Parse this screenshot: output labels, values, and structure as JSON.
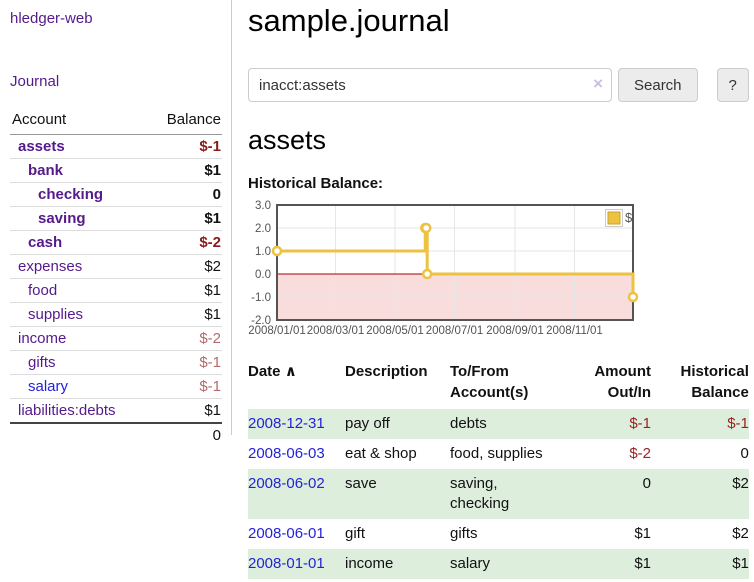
{
  "app": {
    "title": "hledger-web",
    "nav_journal": "Journal"
  },
  "sidebar": {
    "header": {
      "account": "Account",
      "balance": "Balance"
    },
    "accounts": [
      {
        "name": "assets",
        "balance": "$-1"
      },
      {
        "name": "bank",
        "balance": "$1"
      },
      {
        "name": "checking",
        "balance": "0"
      },
      {
        "name": "saving",
        "balance": "$1"
      },
      {
        "name": "cash",
        "balance": "$-2"
      },
      {
        "name": "expenses",
        "balance": "$2"
      },
      {
        "name": "food",
        "balance": "$1"
      },
      {
        "name": "supplies",
        "balance": "$1"
      },
      {
        "name": "income",
        "balance": "$-2"
      },
      {
        "name": "gifts",
        "balance": "$-1"
      },
      {
        "name": "salary",
        "balance": "$-1"
      },
      {
        "name": "liabilities:debts",
        "balance": "$1"
      }
    ],
    "total": "0"
  },
  "header": {
    "title": "sample.journal"
  },
  "search": {
    "query": "inacct:assets",
    "clear_icon": "×",
    "search_label": "Search",
    "help_label": "?"
  },
  "account_page": {
    "heading": "assets"
  },
  "chart_data": {
    "type": "line",
    "style": "step-after",
    "title": "Historical Balance:",
    "series": [
      {
        "name": "$",
        "color": "#edc240",
        "points": [
          [
            "2008-01-01",
            1
          ],
          [
            "2008-06-01",
            2
          ],
          [
            "2008-06-02",
            2
          ],
          [
            "2008-06-03",
            0
          ],
          [
            "2008-12-31",
            -1
          ]
        ]
      }
    ],
    "xlim": [
      "2008-01-01",
      "2008-12-31"
    ],
    "ylim": [
      -2,
      3
    ],
    "y_ticks": [
      3,
      2,
      1,
      0,
      -1,
      -2
    ],
    "x_ticks": [
      "2008/01/01",
      "2008/03/01",
      "2008/05/01",
      "2008/07/01",
      "2008/09/01",
      "2008/11/01"
    ],
    "grid": true,
    "legend_position": "top-right",
    "zero_line_color": "#a40000",
    "negative_region_fill": "#f9dcdc"
  },
  "register": {
    "sort_icon": "∧",
    "columns": [
      {
        "line1": "Date",
        "line2": ""
      },
      {
        "line1": "Description",
        "line2": ""
      },
      {
        "line1": "To/From",
        "line2": "Account(s)"
      },
      {
        "line1": "Amount",
        "line2": "Out/In"
      },
      {
        "line1": "Historical",
        "line2": "Balance"
      }
    ],
    "rows": [
      {
        "date": "2008-12-31",
        "description": "pay off",
        "tofrom": "debts",
        "amount": "$-1",
        "balance": "$-1"
      },
      {
        "date": "2008-06-03",
        "description": "eat & shop",
        "tofrom": "food, supplies",
        "amount": "$-2",
        "balance": "0"
      },
      {
        "date": "2008-06-02",
        "description": "save",
        "tofrom": "saving, checking",
        "amount": "0",
        "balance": "$2"
      },
      {
        "date": "2008-06-01",
        "description": "gift",
        "tofrom": "gifts",
        "amount": "$1",
        "balance": "$2"
      },
      {
        "date": "2008-01-01",
        "description": "income",
        "tofrom": "salary",
        "amount": "$1",
        "balance": "$1"
      }
    ]
  }
}
